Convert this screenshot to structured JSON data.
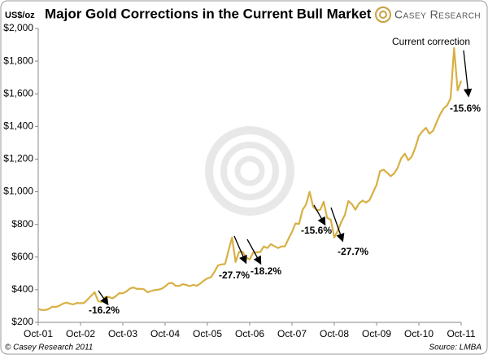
{
  "chart_data": {
    "type": "line",
    "title": "Major Gold Corrections in the Current Bull Market",
    "y_label": "US$/oz",
    "brand": "Casey Research",
    "copyright": "© Casey Research 2011",
    "source": "Source: LMBA",
    "categories": [
      "Oct-01",
      null,
      null,
      null,
      null,
      null,
      null,
      null,
      null,
      null,
      null,
      null,
      "Oct-02",
      null,
      null,
      null,
      null,
      null,
      null,
      null,
      null,
      null,
      null,
      null,
      "Oct-03",
      null,
      null,
      null,
      null,
      null,
      null,
      null,
      null,
      null,
      null,
      null,
      "Oct-04",
      null,
      null,
      null,
      null,
      null,
      null,
      null,
      null,
      null,
      null,
      null,
      "Oct-05",
      null,
      null,
      null,
      null,
      null,
      null,
      null,
      null,
      null,
      null,
      null,
      "Oct-06",
      null,
      null,
      null,
      null,
      null,
      null,
      null,
      null,
      null,
      null,
      null,
      "Oct-07",
      null,
      null,
      null,
      null,
      null,
      null,
      null,
      null,
      null,
      null,
      null,
      "Oct-08",
      null,
      null,
      null,
      null,
      null,
      null,
      null,
      null,
      null,
      null,
      null,
      "Oct-09",
      null,
      null,
      null,
      null,
      null,
      null,
      null,
      null,
      null,
      null,
      null,
      "Oct-10",
      null,
      null,
      null,
      null,
      null,
      null,
      null,
      null,
      null,
      null,
      null,
      "Oct-11"
    ],
    "values": [
      283,
      276,
      276,
      282,
      296,
      294,
      302,
      314,
      321,
      314,
      310,
      319,
      317,
      319,
      340,
      362,
      385,
      330,
      325,
      355,
      356,
      347,
      360,
      379,
      378,
      389,
      407,
      414,
      405,
      406,
      403,
      384,
      392,
      398,
      400,
      406,
      420,
      439,
      442,
      424,
      423,
      434,
      429,
      422,
      430,
      424,
      438,
      456,
      470,
      476,
      510,
      549,
      555,
      557,
      640,
      720,
      570,
      633,
      632,
      598,
      585,
      628,
      629,
      631,
      665,
      655,
      679,
      667,
      655,
      665,
      665,
      712,
      754,
      806,
      803,
      889,
      922,
      1000,
      909,
      888,
      889,
      939,
      839,
      829,
      720,
      760,
      816,
      858,
      943,
      924,
      890,
      928,
      946,
      934,
      949,
      996,
      1043,
      1127,
      1135,
      1117,
      1095,
      1113,
      1148,
      1205,
      1233,
      1193,
      1215,
      1271,
      1342,
      1370,
      1391,
      1356,
      1372,
      1424,
      1473,
      1510,
      1529,
      1572,
      1880,
      1620,
      1680
    ],
    "color": "#d8b043",
    "ylim": [
      200,
      2000
    ],
    "yticks": [
      {
        "value": 200,
        "label": "$200"
      },
      {
        "value": 400,
        "label": "$400"
      },
      {
        "value": 600,
        "label": "$600"
      },
      {
        "value": 800,
        "label": "$800"
      },
      {
        "value": 1000,
        "label": "$1,000"
      },
      {
        "value": 1200,
        "label": "$1,200"
      },
      {
        "value": 1400,
        "label": "$1,400"
      },
      {
        "value": 1600,
        "label": "$1,600"
      },
      {
        "value": 1800,
        "label": "$1,800"
      },
      {
        "value": 2000,
        "label": "$2,000"
      }
    ],
    "annotations": [
      "-16.2%",
      "-27.7%",
      "-18.2%",
      "-15.6%",
      "-27.7%",
      "Current correction",
      "-15.6%"
    ]
  }
}
